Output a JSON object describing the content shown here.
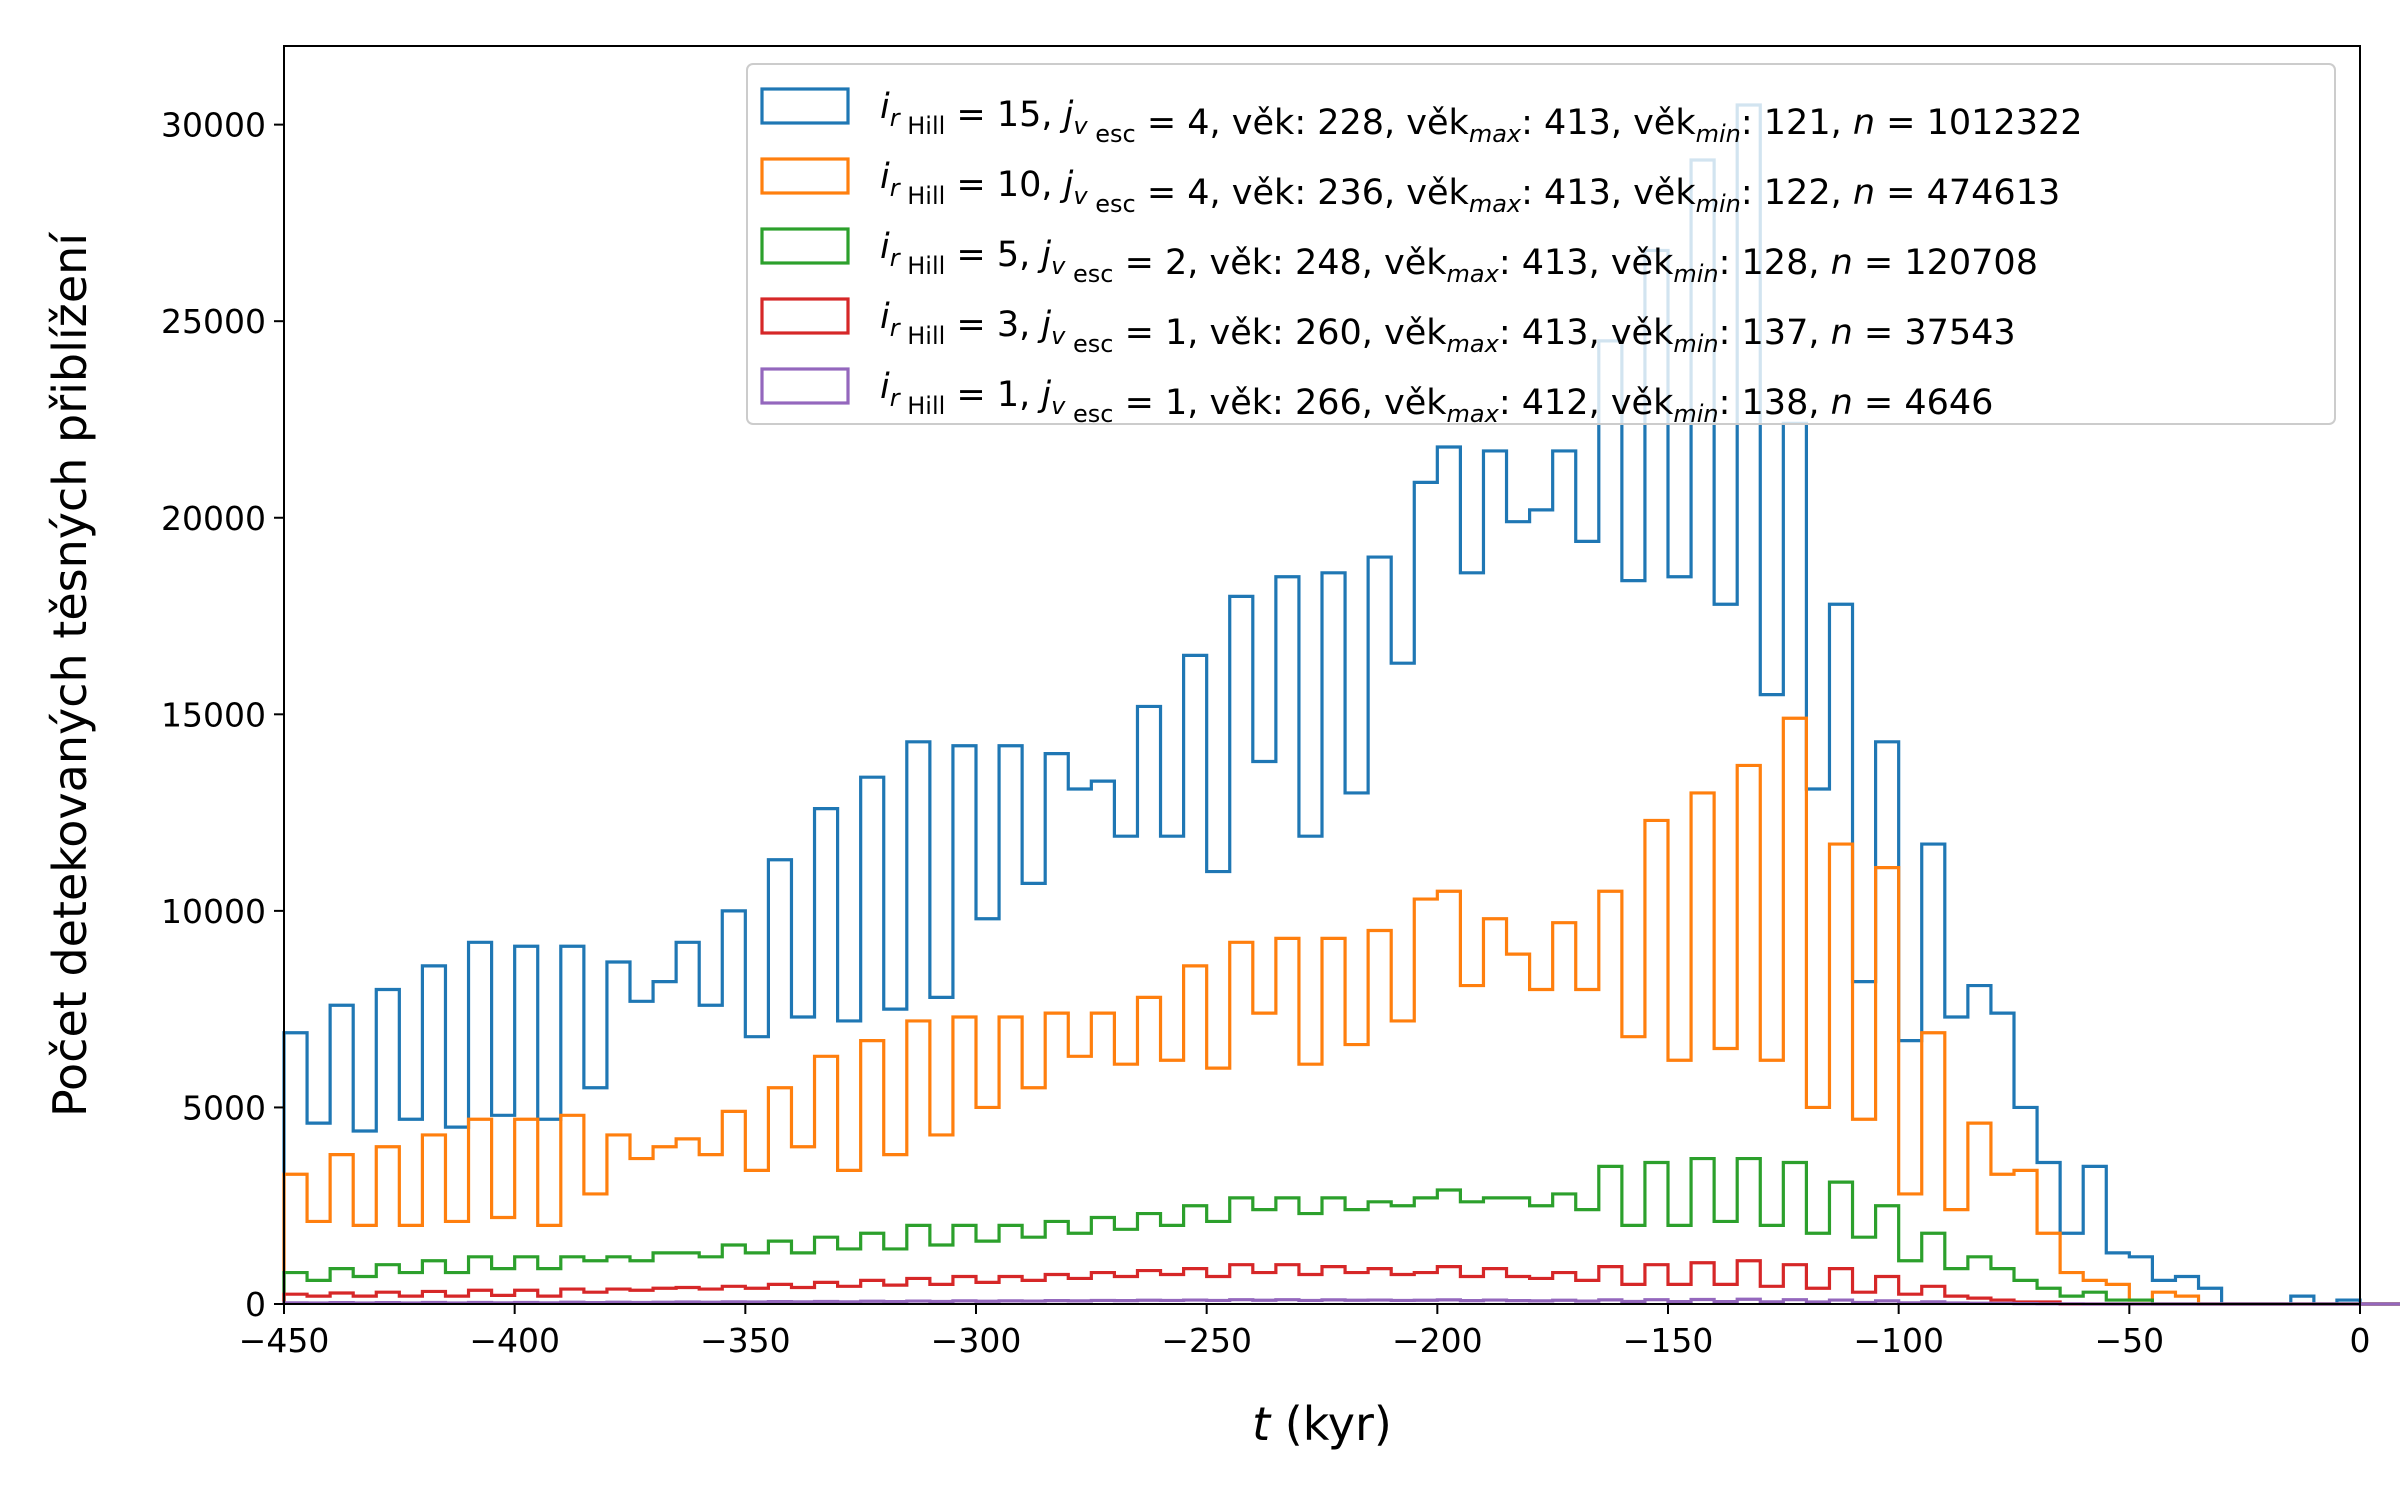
{
  "chart_data": {
    "type": "histogram",
    "xlabel": {
      "var": "t",
      "unit": " (kyr)"
    },
    "ylabel": "Počet detekovaných těsných přiblížení",
    "xlim": [
      -450,
      0
    ],
    "ylim": [
      0,
      32000
    ],
    "x_ticks": [
      -450,
      -400,
      -350,
      -300,
      -250,
      -200,
      -150,
      -100,
      -50,
      0
    ],
    "x_tick_labels": [
      "−450",
      "−400",
      "−350",
      "−300",
      "−250",
      "−200",
      "−150",
      "−100",
      "−50",
      "0"
    ],
    "y_ticks": [
      0,
      5000,
      10000,
      15000,
      20000,
      25000,
      30000
    ],
    "y_tick_labels": [
      "0",
      "5000",
      "10000",
      "15000",
      "20000",
      "25000",
      "30000"
    ],
    "bin_start": -450,
    "bin_width": 5,
    "grid": false,
    "legend_position": "top-right",
    "series": [
      {
        "color": "#1f77b4",
        "legend": {
          "i_val": "15",
          "j_val": "4",
          "vek": "228",
          "vek_max": "413",
          "vek_min": "121",
          "n": "1012322"
        },
        "values": [
          6900,
          4600,
          7600,
          4400,
          8000,
          4700,
          8600,
          4500,
          9200,
          4800,
          9100,
          4700,
          9100,
          5500,
          8700,
          7700,
          8200,
          9200,
          7600,
          10000,
          6800,
          11300,
          7300,
          12600,
          7200,
          13400,
          7500,
          14300,
          7800,
          14200,
          9800,
          14200,
          10700,
          14000,
          13100,
          13300,
          11900,
          15200,
          11900,
          16500,
          11000,
          18000,
          13800,
          18500,
          11900,
          18600,
          13000,
          19000,
          16300,
          20900,
          21800,
          18600,
          21700,
          19900,
          20200,
          21700,
          19400,
          24500,
          18400,
          26800,
          18500,
          29100,
          17800,
          30500,
          15500,
          22400,
          13100,
          17800,
          8200,
          14300,
          6700,
          11700,
          7300,
          8100,
          7400,
          5000,
          3600,
          1800,
          3500,
          1300,
          1200,
          600,
          700,
          400,
          0,
          0,
          0,
          200,
          0,
          100,
          0,
          0,
          0,
          0,
          0,
          0,
          0,
          0,
          0,
          0
        ]
      },
      {
        "color": "#ff7f0e",
        "legend": {
          "i_val": "10",
          "j_val": "4",
          "vek": "236",
          "vek_max": "413",
          "vek_min": "122",
          "n": "474613"
        },
        "values": [
          3300,
          2100,
          3800,
          2000,
          4000,
          2000,
          4300,
          2100,
          4700,
          2200,
          4700,
          2000,
          4800,
          2800,
          4300,
          3700,
          4000,
          4200,
          3800,
          4900,
          3400,
          5500,
          4000,
          6300,
          3400,
          6700,
          3800,
          7200,
          4300,
          7300,
          5000,
          7300,
          5500,
          7400,
          6300,
          7400,
          6100,
          7800,
          6200,
          8600,
          6000,
          9200,
          7400,
          9300,
          6100,
          9300,
          6600,
          9500,
          7200,
          10300,
          10500,
          8100,
          9800,
          8900,
          8000,
          9700,
          8000,
          10500,
          6800,
          12300,
          6200,
          13000,
          6500,
          13700,
          6200,
          14900,
          5000,
          11700,
          4700,
          11100,
          2800,
          6900,
          2400,
          4600,
          3300,
          3400,
          1800,
          800,
          600,
          500,
          100,
          300,
          200,
          0,
          0,
          0,
          0,
          0,
          0,
          0,
          0,
          0,
          0,
          0,
          0,
          0,
          0,
          0,
          0,
          0
        ]
      },
      {
        "color": "#2ca02c",
        "legend": {
          "i_val": " 5",
          "j_val": "2",
          "vek": "248",
          "vek_max": "413",
          "vek_min": "128",
          "n": "120708"
        },
        "values": [
          800,
          600,
          900,
          700,
          1000,
          800,
          1100,
          800,
          1200,
          900,
          1200,
          900,
          1200,
          1100,
          1200,
          1100,
          1300,
          1300,
          1200,
          1500,
          1300,
          1600,
          1300,
          1700,
          1400,
          1800,
          1400,
          2000,
          1500,
          2000,
          1600,
          2000,
          1700,
          2100,
          1800,
          2200,
          1900,
          2300,
          2000,
          2500,
          2100,
          2700,
          2400,
          2700,
          2300,
          2700,
          2400,
          2600,
          2500,
          2700,
          2900,
          2600,
          2700,
          2700,
          2500,
          2800,
          2400,
          3500,
          2000,
          3600,
          2000,
          3700,
          2100,
          3700,
          2000,
          3600,
          1800,
          3100,
          1700,
          2500,
          1100,
          1800,
          900,
          1200,
          900,
          600,
          400,
          200,
          300,
          100,
          100,
          0,
          0,
          0,
          0,
          0,
          0,
          0,
          0,
          0,
          0,
          0,
          0,
          0,
          0,
          0,
          0,
          0,
          0,
          0
        ]
      },
      {
        "color": "#d62728",
        "legend": {
          "i_val": " 3",
          "j_val": "1",
          "vek": "260",
          "vek_max": "413",
          "vek_min": "137",
          "n": "37543"
        },
        "values": [
          250,
          200,
          280,
          200,
          300,
          200,
          320,
          200,
          350,
          220,
          350,
          200,
          380,
          300,
          380,
          350,
          400,
          420,
          380,
          450,
          400,
          500,
          420,
          550,
          450,
          600,
          480,
          650,
          500,
          700,
          550,
          700,
          600,
          750,
          650,
          800,
          700,
          850,
          750,
          900,
          700,
          1000,
          800,
          1000,
          750,
          950,
          800,
          900,
          750,
          800,
          950,
          700,
          900,
          700,
          650,
          800,
          600,
          950,
          500,
          1000,
          500,
          1050,
          500,
          1100,
          450,
          1000,
          400,
          900,
          300,
          700,
          250,
          450,
          200,
          150,
          100,
          50,
          50,
          0,
          0,
          0,
          0,
          0,
          0,
          0,
          0,
          0,
          0,
          0,
          0,
          0,
          0,
          0,
          0,
          0,
          0,
          0,
          0,
          0
        ]
      },
      {
        "color": "#9467bd",
        "legend": {
          "i_val": " 1",
          "j_val": "1",
          "vek": "266",
          "vek_max": "412",
          "vek_min": "138",
          "n": "4646"
        },
        "values": [
          30,
          25,
          35,
          25,
          35,
          25,
          40,
          25,
          40,
          30,
          40,
          30,
          45,
          35,
          45,
          40,
          45,
          50,
          45,
          55,
          50,
          60,
          55,
          65,
          55,
          70,
          60,
          75,
          65,
          80,
          70,
          80,
          75,
          85,
          80,
          90,
          85,
          95,
          90,
          100,
          90,
          110,
          95,
          110,
          90,
          105,
          95,
          100,
          90,
          95,
          105,
          85,
          100,
          85,
          80,
          95,
          75,
          105,
          65,
          110,
          60,
          115,
          60,
          120,
          55,
          110,
          50,
          100,
          40,
          80,
          30,
          55,
          25,
          20,
          15,
          10,
          5,
          5,
          0,
          0,
          0,
          0,
          0,
          0,
          0,
          0,
          0,
          0,
          0,
          0,
          0,
          0,
          0,
          0,
          0,
          0,
          0,
          0,
          0,
          0
        ]
      }
    ]
  }
}
